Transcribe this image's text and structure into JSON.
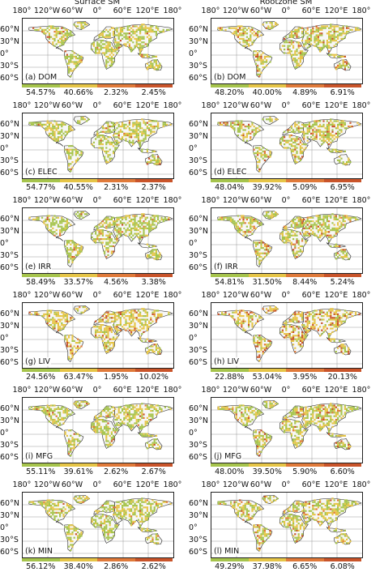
{
  "columns": [
    {
      "title": "Surface SM"
    },
    {
      "title": "Rootzone SM"
    }
  ],
  "lon_labels": [
    "180°",
    "120°W",
    "60°W",
    "0°",
    "60°E",
    "120°E",
    "180°"
  ],
  "lat_labels": [
    "60°N",
    "30°N",
    "0°",
    "30°S",
    "60°S"
  ],
  "legend_colors": [
    "#a6c44c",
    "#e6c547",
    "#e07a3a",
    "#c9542a"
  ],
  "panels": [
    {
      "label": "(a) DOM",
      "pcts": [
        "54.57%",
        "40.66%",
        "2.32%",
        "2.45%"
      ],
      "shares": [
        0.5457,
        0.4066,
        0.0232,
        0.0245
      ]
    },
    {
      "label": "(b) DOM",
      "pcts": [
        "48.20%",
        "40.00%",
        "4.89%",
        "6.91%"
      ],
      "shares": [
        0.482,
        0.4,
        0.0489,
        0.0691
      ]
    },
    {
      "label": "(c) ELEC",
      "pcts": [
        "54.77%",
        "40.55%",
        "2.31%",
        "2.37%"
      ],
      "shares": [
        0.5477,
        0.4055,
        0.0231,
        0.0237
      ]
    },
    {
      "label": "(d) ELEC",
      "pcts": [
        "48.04%",
        "39.92%",
        "5.09%",
        "6.95%"
      ],
      "shares": [
        0.4804,
        0.3992,
        0.0509,
        0.0695
      ]
    },
    {
      "label": "(e) IRR",
      "pcts": [
        "58.49%",
        "33.57%",
        "4.56%",
        "3.38%"
      ],
      "shares": [
        0.5849,
        0.3357,
        0.0456,
        0.0338
      ]
    },
    {
      "label": "(f) IRR",
      "pcts": [
        "54.81%",
        "31.50%",
        "8.44%",
        "5.24%"
      ],
      "shares": [
        0.5481,
        0.315,
        0.0844,
        0.0524
      ]
    },
    {
      "label": "(g) LIV",
      "pcts": [
        "24.56%",
        "63.47%",
        "1.95%",
        "10.02%"
      ],
      "shares": [
        0.2456,
        0.6347,
        0.0195,
        0.1002
      ]
    },
    {
      "label": "(h) LIV",
      "pcts": [
        "22.88%",
        "53.04%",
        "3.95%",
        "20.13%"
      ],
      "shares": [
        0.2288,
        0.5304,
        0.0395,
        0.2013
      ]
    },
    {
      "label": "(i) MFG",
      "pcts": [
        "55.11%",
        "39.61%",
        "2.62%",
        "2.67%"
      ],
      "shares": [
        0.5511,
        0.3961,
        0.0262,
        0.0267
      ]
    },
    {
      "label": "(j) MFG",
      "pcts": [
        "48.00%",
        "39.50%",
        "5.90%",
        "6.60%"
      ],
      "shares": [
        0.48,
        0.395,
        0.059,
        0.066
      ]
    },
    {
      "label": "(k) MIN",
      "pcts": [
        "56.12%",
        "38.40%",
        "2.86%",
        "2.62%"
      ],
      "shares": [
        0.5612,
        0.384,
        0.0286,
        0.0262
      ]
    },
    {
      "label": "(l) MIN",
      "pcts": [
        "49.29%",
        "37.98%",
        "6.65%",
        "6.08%"
      ],
      "shares": [
        0.4929,
        0.3798,
        0.0665,
        0.0608
      ]
    }
  ]
}
